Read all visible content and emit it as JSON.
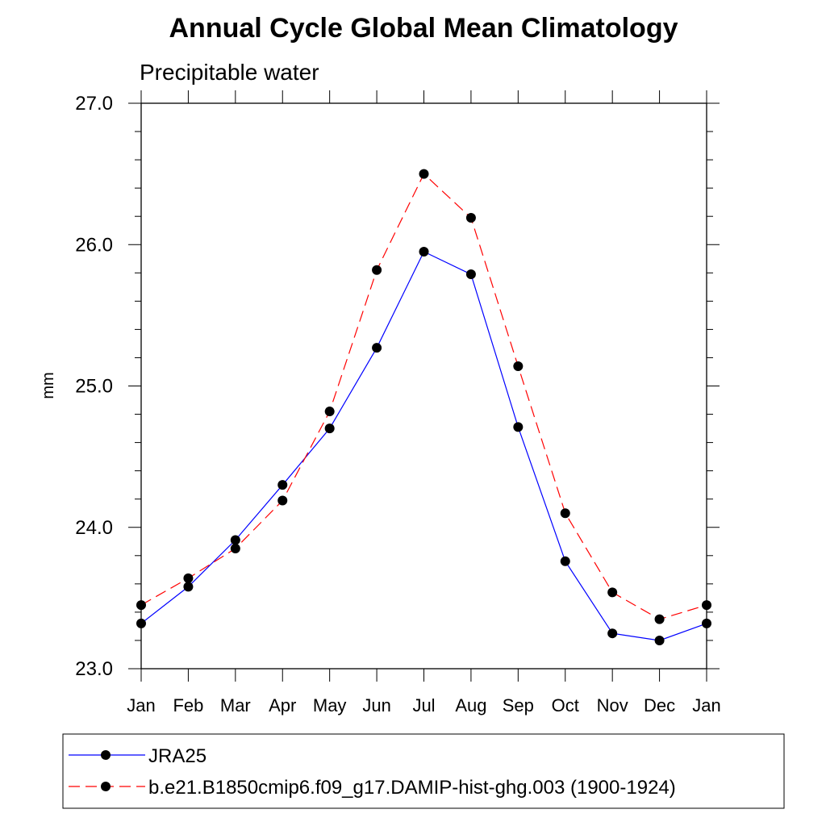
{
  "chart_data": {
    "type": "line",
    "title": "Annual Cycle Global Mean Climatology",
    "subtitle": "Precipitable water",
    "xlabel": "",
    "ylabel": "mm",
    "categories": [
      "Jan",
      "Feb",
      "Mar",
      "Apr",
      "May",
      "Jun",
      "Jul",
      "Aug",
      "Sep",
      "Oct",
      "Nov",
      "Dec",
      "Jan"
    ],
    "ylim": [
      23.0,
      27.0
    ],
    "yticks": [
      23.0,
      24.0,
      25.0,
      26.0,
      27.0
    ],
    "ytick_labels": [
      "23.0",
      "24.0",
      "25.0",
      "26.0",
      "27.0"
    ],
    "grid": false,
    "legend_position": "bottom",
    "series": [
      {
        "name": "JRA25",
        "color": "#0000ff",
        "dash": "solid",
        "values": [
          23.32,
          23.58,
          23.91,
          24.3,
          24.7,
          25.27,
          25.95,
          25.79,
          24.71,
          23.76,
          23.25,
          23.2,
          23.32
        ]
      },
      {
        "name": "b.e21.B1850cmip6.f09_g17.DAMIP-hist-ghg.003 (1900-1924)",
        "color": "#ff0000",
        "dash": "dashed",
        "values": [
          23.45,
          23.64,
          23.85,
          24.19,
          24.82,
          25.82,
          26.5,
          26.19,
          25.14,
          24.1,
          23.54,
          23.35,
          23.45
        ]
      }
    ]
  }
}
